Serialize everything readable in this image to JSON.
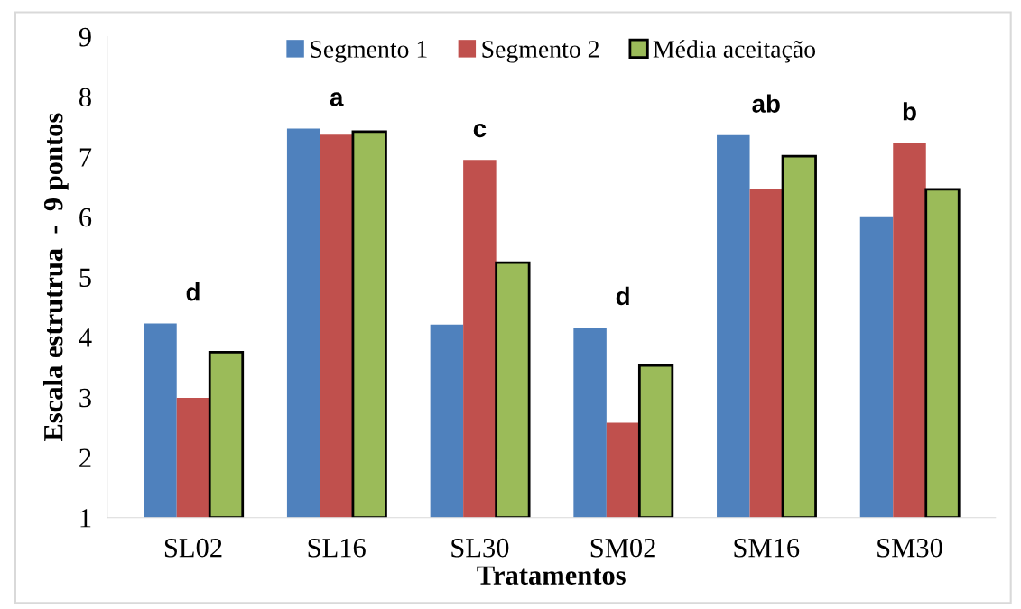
{
  "chart_data": {
    "type": "bar",
    "xlabel": "Tratamentos",
    "ylabel": "Escala estrutrua  -  9 pontos",
    "categories": [
      "SL02",
      "SL16",
      "SL30",
      "SM02",
      "SM16",
      "SM30"
    ],
    "series": [
      {
        "name": "Segmento 1",
        "color": "#4f81bd",
        "values": [
          4.23,
          7.47,
          4.21,
          4.16,
          7.36,
          6.01
        ]
      },
      {
        "name": "Segmento 2",
        "color": "#c0504d",
        "values": [
          2.99,
          7.37,
          6.95,
          2.58,
          6.46,
          7.23
        ]
      },
      {
        "name": "Média aceitação",
        "color": "#9bbb59",
        "values": [
          3.75,
          7.42,
          5.24,
          3.53,
          7.01,
          6.46
        ]
      }
    ],
    "ylim": [
      1,
      9
    ],
    "yticks": [
      1,
      2,
      3,
      4,
      5,
      6,
      7,
      8,
      9
    ],
    "grid": false,
    "legend": "top",
    "annotations": [
      "d",
      "a",
      "c",
      "d",
      "ab",
      "b"
    ]
  }
}
